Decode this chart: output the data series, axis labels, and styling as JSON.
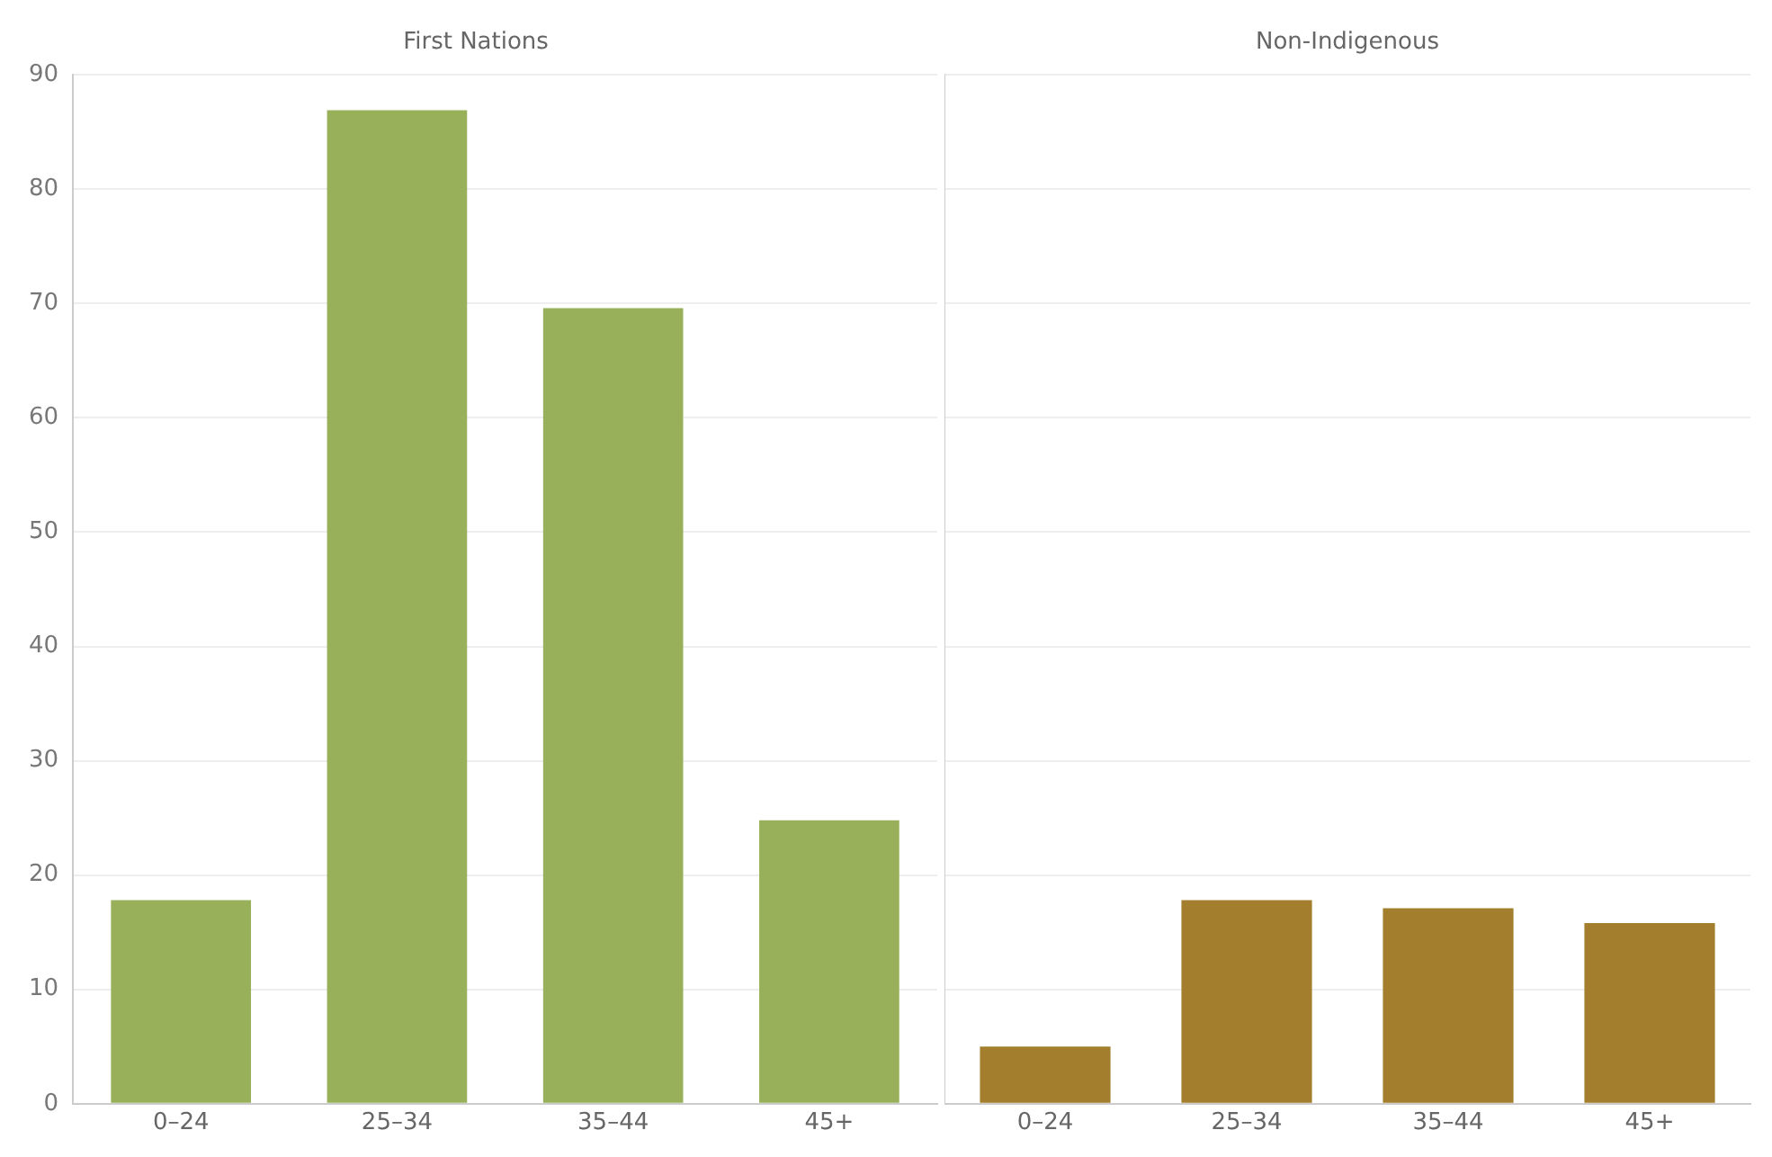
{
  "chart_data": [
    {
      "type": "bar",
      "title": "First Nations",
      "categories": [
        "0–24",
        "25–34",
        "35–44",
        "45+"
      ],
      "series": [
        {
          "color": "#98b05a",
          "values": [
            17.8,
            86.9,
            69.6,
            24.8
          ]
        }
      ],
      "ylim": [
        0,
        90
      ],
      "yticks": [
        0,
        10,
        20,
        30,
        40,
        50,
        60,
        70,
        80,
        90
      ],
      "grid": "y",
      "legend": false
    },
    {
      "type": "bar",
      "title": "Non-Indigenous",
      "categories": [
        "0–24",
        "25–34",
        "35–44",
        "45+"
      ],
      "series": [
        {
          "color": "#a37e2c",
          "values": [
            5.0,
            17.8,
            17.1,
            15.8
          ]
        }
      ],
      "ylim": [
        0,
        90
      ],
      "yticks": [
        0,
        10,
        20,
        30,
        40,
        50,
        60,
        70,
        80,
        90
      ],
      "grid": "y",
      "legend": false,
      "tick_labels": "x"
    }
  ]
}
